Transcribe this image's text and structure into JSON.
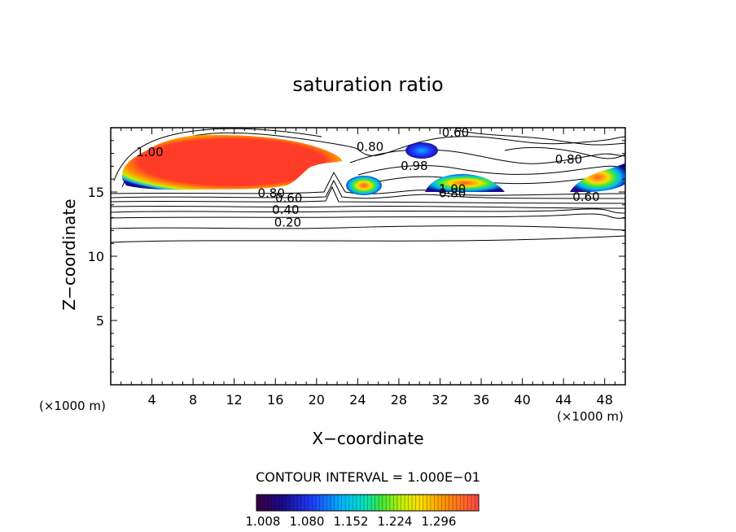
{
  "chart_data": {
    "type": "contour",
    "title": "saturation ratio",
    "xlabel": "X−coordinate",
    "ylabel": "Z−coordinate",
    "x_unit_left": "(×1000 m)",
    "x_unit_right": "(×1000 m)",
    "xlim": [
      0,
      50
    ],
    "ylim": [
      0,
      20
    ],
    "x_ticks": [
      4,
      8,
      12,
      16,
      20,
      24,
      28,
      32,
      36,
      40,
      44,
      48
    ],
    "y_ticks": [
      5,
      10,
      15
    ],
    "contour_interval_text": "CONTOUR INTERVAL = 1.000E−01",
    "contour_labels": [
      {
        "text": "1.00",
        "x": 3.8,
        "y": 17.8
      },
      {
        "text": "0.80",
        "x": 25.2,
        "y": 18.2
      },
      {
        "text": "0.60",
        "x": 33.5,
        "y": 19.3
      },
      {
        "text": "0.80",
        "x": 15.6,
        "y": 14.6
      },
      {
        "text": "0.60",
        "x": 17.3,
        "y": 14.2
      },
      {
        "text": "0.40",
        "x": 17.0,
        "y": 13.3
      },
      {
        "text": "0.20",
        "x": 17.2,
        "y": 12.3
      },
      {
        "text": "1.00",
        "x": 33.2,
        "y": 14.9
      },
      {
        "text": "0.80",
        "x": 33.2,
        "y": 14.6
      },
      {
        "text": "0.60",
        "x": 46.2,
        "y": 14.3
      },
      {
        "text": "0.80",
        "x": 44.5,
        "y": 17.2
      },
      {
        "text": "0.98",
        "x": 29.5,
        "y": 16.7
      }
    ],
    "colorbar": {
      "tick_labels": [
        "1.008",
        "1.080",
        "1.152",
        "1.224",
        "1.296"
      ],
      "colors": [
        "#3a0040",
        "#1a0a8c",
        "#1e3cff",
        "#00b4ff",
        "#00e0c8",
        "#3ce83c",
        "#c8f000",
        "#ffdc00",
        "#ff9600",
        "#ff3c28",
        "#ff4646"
      ]
    },
    "filled_regions_note": "supersaturated regions where ratio > 1.0"
  }
}
